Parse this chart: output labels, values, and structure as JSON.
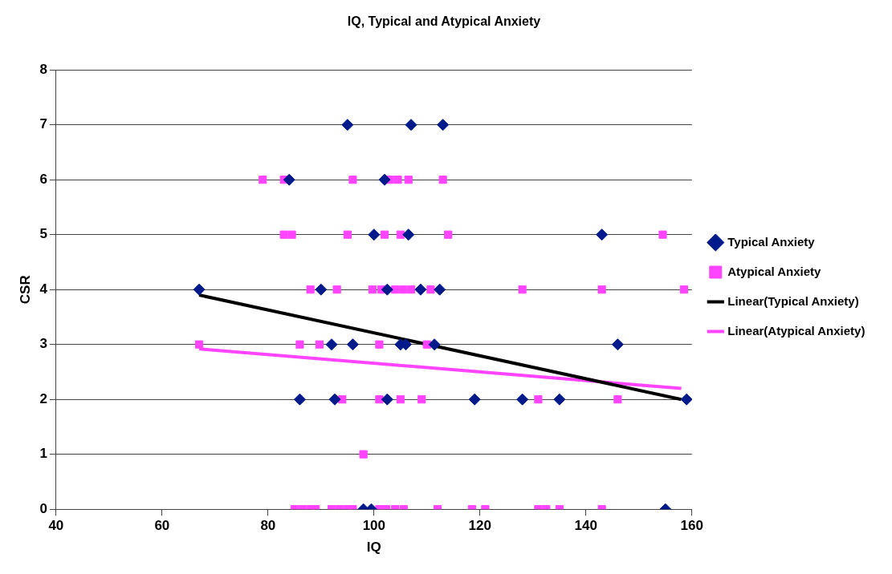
{
  "chart_data": {
    "type": "scatter",
    "title": "IQ, Typical and Atypical Anxiety",
    "xlabel": "IQ",
    "ylabel": "CSR",
    "xlim": [
      40,
      160
    ],
    "xticks": [
      40,
      60,
      80,
      100,
      120,
      140,
      160
    ],
    "ylim": [
      0,
      8
    ],
    "yticks": [
      0,
      1,
      2,
      3,
      4,
      5,
      6,
      7,
      8
    ],
    "grid": "y",
    "legend": "right",
    "series": [
      {
        "name": "Typical Anxiety",
        "color": "#001a8c",
        "marker": "diamond",
        "x": [
          95,
          107,
          113,
          84,
          102,
          100,
          106.5,
          143,
          67,
          90,
          102.5,
          108.8,
          112.4,
          92,
          96,
          105,
          106,
          111.4,
          146,
          86,
          92.6,
          102.5,
          119,
          128,
          135,
          159,
          98,
          99.5,
          155
        ],
        "values": [
          7,
          7,
          7,
          6,
          6,
          5,
          5,
          5,
          4,
          4,
          4,
          4,
          4,
          3,
          3,
          3,
          3,
          3,
          3,
          2,
          2,
          2,
          2,
          2,
          2,
          2,
          0,
          0,
          0
        ]
      },
      {
        "name": "Atypical Anxiety",
        "color": "#ff44ff",
        "marker": "square",
        "x": [
          79,
          83,
          96,
          103,
          104.5,
          106.5,
          113,
          83,
          84.5,
          95,
          102,
          105,
          114,
          154.5,
          88,
          93,
          99.7,
          101.4,
          104,
          105.5,
          107,
          110.7,
          128,
          143,
          158.5,
          67,
          86,
          89.7,
          101,
          110,
          94,
          101,
          105,
          109,
          131,
          146,
          98,
          85,
          86.5,
          88,
          89,
          92,
          93.5,
          95,
          96,
          101,
          102.3,
          104,
          105.6,
          112,
          118.5,
          121,
          131,
          132.5,
          135,
          143
        ],
        "values": [
          6,
          6,
          6,
          6,
          6,
          6,
          6,
          5,
          5,
          5,
          5,
          5,
          5,
          5,
          4,
          4,
          4,
          4,
          4,
          4,
          4,
          4,
          4,
          4,
          4,
          3,
          3,
          3,
          3,
          3,
          2,
          2,
          2,
          2,
          2,
          2,
          1,
          0,
          0,
          0,
          0,
          0,
          0,
          0,
          0,
          0,
          0,
          0,
          0,
          0,
          0,
          0,
          0,
          0,
          0,
          0
        ]
      },
      {
        "name": "Linear(Typical Anxiety)",
        "type": "line",
        "color": "#000000",
        "marker": "none",
        "x": [
          67,
          158
        ],
        "values": [
          3.9,
          2.0
        ]
      },
      {
        "name": "Linear(Atypical Anxiety)",
        "type": "line",
        "color": "#ff44ff",
        "marker": "none",
        "x": [
          67,
          158
        ],
        "values": [
          2.92,
          2.2
        ]
      }
    ]
  }
}
